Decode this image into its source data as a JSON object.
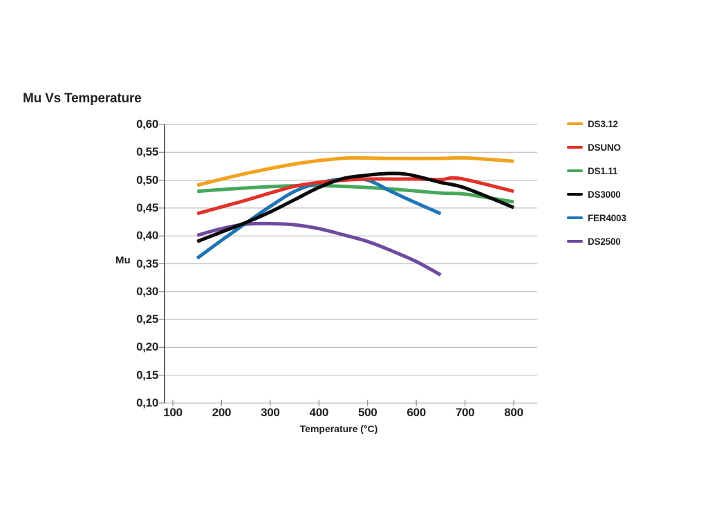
{
  "title": "Mu Vs Temperature",
  "colors": {
    "text": "#231F20",
    "gridline": "#BFBFBF",
    "axis": "#3B3B3B",
    "tick": "#8A8A8A",
    "background": "#FFFFFF"
  },
  "chart_data": {
    "type": "line",
    "title": "Mu Vs Temperature",
    "xlabel": "Temperature (°C)",
    "ylabel": "Mu",
    "xlim": [
      81,
      850
    ],
    "ylim": [
      0.1,
      0.6
    ],
    "x_ticks": [
      100,
      200,
      300,
      400,
      500,
      600,
      700,
      800
    ],
    "x_tick_labels": [
      "100",
      "200",
      "300",
      "400",
      "500",
      "600",
      "700",
      "800"
    ],
    "y_ticks": [
      0.6,
      0.55,
      0.5,
      0.45,
      0.4,
      0.35,
      0.3,
      0.25,
      0.2,
      0.15,
      0.1
    ],
    "y_tick_labels": [
      "0,60",
      "0,55",
      "0,50",
      "0,45",
      "0,40",
      "0,35",
      "0,30",
      "0,25",
      "0,20",
      "0,15",
      "0,10"
    ],
    "grid": "horizontal",
    "legend_position": "right",
    "decimal_separator": ",",
    "line_width": 5,
    "series": [
      {
        "name": "DS3.12",
        "color": "#F2A21E",
        "x": [
          150,
          250,
          350,
          420,
          470,
          550,
          650,
          700,
          800
        ],
        "y": [
          0.491,
          0.512,
          0.529,
          0.537,
          0.54,
          0.539,
          0.539,
          0.54,
          0.534
        ]
      },
      {
        "name": "DSUNO",
        "color": "#E1312A",
        "x": [
          150,
          200,
          250,
          300,
          350,
          400,
          450,
          500,
          550,
          600,
          650,
          690,
          800
        ],
        "y": [
          0.44,
          0.452,
          0.464,
          0.477,
          0.489,
          0.496,
          0.5,
          0.502,
          0.502,
          0.502,
          0.501,
          0.503,
          0.48
        ]
      },
      {
        "name": "DS1.11",
        "color": "#47A85C",
        "x": [
          150,
          250,
          350,
          450,
          550,
          650,
          700,
          800
        ],
        "y": [
          0.48,
          0.486,
          0.49,
          0.489,
          0.484,
          0.477,
          0.475,
          0.461
        ]
      },
      {
        "name": "DS3000",
        "color": "#0A0A0A",
        "x": [
          150,
          250,
          300,
          350,
          400,
          450,
          500,
          545,
          585,
          650,
          700,
          800
        ],
        "y": [
          0.39,
          0.424,
          0.443,
          0.465,
          0.487,
          0.503,
          0.509,
          0.512,
          0.51,
          0.496,
          0.486,
          0.451
        ]
      },
      {
        "name": "FER4003",
        "color": "#1E75B5",
        "x": [
          150,
          200,
          250,
          300,
          350,
          400,
          450,
          500,
          550,
          600,
          650
        ],
        "y": [
          0.36,
          0.392,
          0.423,
          0.453,
          0.48,
          0.495,
          0.502,
          0.5,
          0.479,
          0.459,
          0.44
        ]
      },
      {
        "name": "DS2500",
        "color": "#6E4B9E",
        "x": [
          150,
          200,
          250,
          300,
          350,
          400,
          450,
          500,
          550,
          600,
          650
        ],
        "y": [
          0.401,
          0.413,
          0.421,
          0.422,
          0.42,
          0.413,
          0.402,
          0.39,
          0.373,
          0.354,
          0.33
        ]
      }
    ]
  }
}
